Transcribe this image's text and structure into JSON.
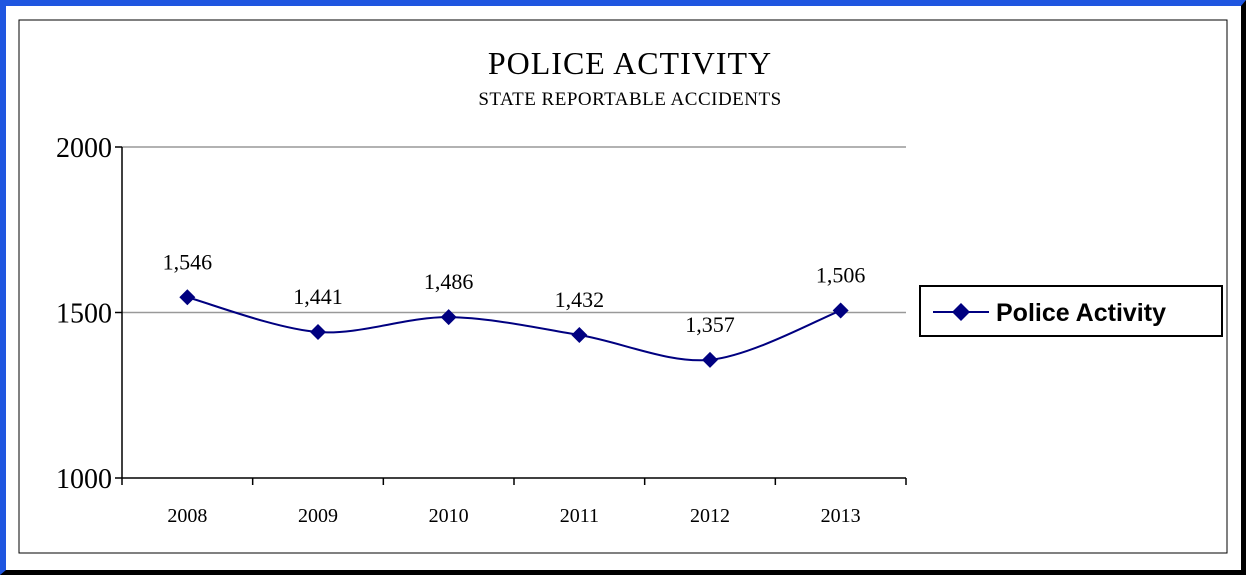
{
  "chart_data": {
    "type": "line",
    "title": "POLICE ACTIVITY",
    "subtitle": "STATE REPORTABLE ACCIDENTS",
    "categories": [
      "2008",
      "2009",
      "2010",
      "2011",
      "2012",
      "2013"
    ],
    "series": [
      {
        "name": "Police Activity",
        "values": [
          1546,
          1441,
          1486,
          1432,
          1357,
          1506
        ],
        "data_labels": [
          "1,546",
          "1,441",
          "1,486",
          "1,432",
          "1,357",
          "1,506"
        ],
        "color": "#000080"
      }
    ],
    "y_ticks": [
      "1000",
      "1500",
      "2000"
    ],
    "ylim": [
      1000,
      2000
    ],
    "grid": true,
    "smooth": true,
    "marker": "diamond",
    "legend_position": "right"
  }
}
